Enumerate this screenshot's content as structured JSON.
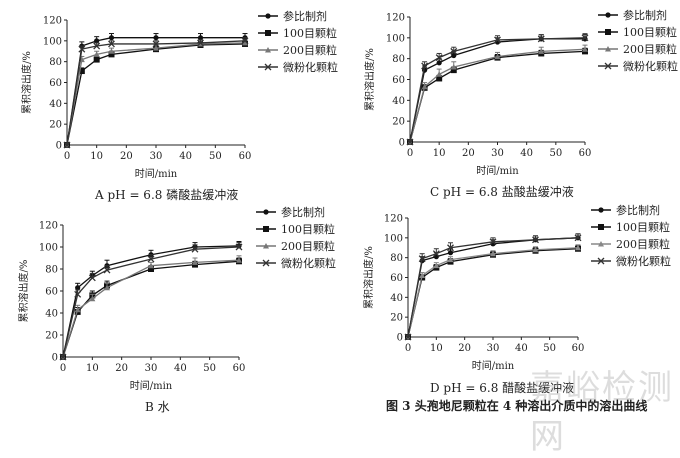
{
  "figure_caption": "图 3   头孢地尼颗粒在 4 种溶出介质中的溶出曲线",
  "watermark": "嘉峪检测网",
  "chart_data": [
    {
      "type": "line",
      "panel": "A",
      "caption": "A  pH = 6.8 磷酸盐缓冲液",
      "xlabel": "时间/min",
      "ylabel": "累积溶出度/%",
      "xlim": [
        0,
        60
      ],
      "ylim": [
        0,
        120
      ],
      "xticks": [
        0,
        10,
        20,
        30,
        40,
        50,
        60
      ],
      "yticks": [
        0,
        20,
        40,
        60,
        80,
        100,
        120
      ],
      "legend": "top-right",
      "grid": false,
      "x": [
        0,
        5,
        10,
        15,
        30,
        45,
        60
      ],
      "series": [
        {
          "name": "参比制剂",
          "marker": "diamond",
          "color": "#111111",
          "values": [
            0,
            95,
            100,
            103,
            103,
            103,
            103
          ],
          "error": [
            0,
            4,
            4,
            4,
            4,
            4,
            4
          ]
        },
        {
          "name": "100目颗粒",
          "marker": "square",
          "color": "#111111",
          "values": [
            0,
            71,
            82,
            87,
            92,
            96,
            97
          ],
          "error": [
            0,
            3,
            3,
            3,
            3,
            3,
            3
          ]
        },
        {
          "name": "200目颗粒",
          "marker": "triangle",
          "color": "#777777",
          "values": [
            0,
            82,
            87,
            90,
            93,
            97,
            98
          ],
          "error": [
            0,
            3,
            3,
            3,
            3,
            3,
            3
          ]
        },
        {
          "name": "微粉化颗粒",
          "marker": "cross",
          "color": "#333333",
          "values": [
            0,
            92,
            95,
            97,
            97,
            98,
            100
          ],
          "error": [
            0,
            3,
            3,
            3,
            3,
            3,
            3
          ]
        }
      ]
    },
    {
      "type": "line",
      "panel": "C",
      "caption": "C  pH = 6.8 盐酸盐缓冲液",
      "xlabel": "时间/min",
      "ylabel": "累积溶出度/%",
      "xlim": [
        0,
        60
      ],
      "ylim": [
        0,
        120
      ],
      "xticks": [
        0,
        10,
        20,
        30,
        40,
        50,
        60
      ],
      "yticks": [
        0,
        20,
        40,
        60,
        80,
        100,
        120
      ],
      "legend": "top-right",
      "grid": false,
      "x": [
        0,
        5,
        10,
        15,
        30,
        45,
        60
      ],
      "series": [
        {
          "name": "参比制剂",
          "marker": "diamond",
          "color": "#111111",
          "values": [
            0,
            69,
            76,
            83,
            96,
            99,
            99
          ],
          "error": [
            0,
            4,
            4,
            4,
            4,
            4,
            4
          ]
        },
        {
          "name": "100目颗粒",
          "marker": "square",
          "color": "#111111",
          "values": [
            0,
            52,
            61,
            69,
            81,
            85,
            87
          ],
          "error": [
            0,
            3,
            3,
            3,
            3,
            3,
            3
          ]
        },
        {
          "name": "200目颗粒",
          "marker": "triangle",
          "color": "#777777",
          "values": [
            0,
            53,
            65,
            72,
            82,
            87,
            89
          ],
          "error": [
            0,
            4,
            5,
            5,
            4,
            4,
            4
          ]
        },
        {
          "name": "微粉化颗粒",
          "marker": "cross",
          "color": "#333333",
          "values": [
            0,
            73,
            81,
            87,
            98,
            99,
            100
          ],
          "error": [
            0,
            4,
            4,
            4,
            4,
            4,
            4
          ]
        }
      ]
    },
    {
      "type": "line",
      "panel": "B",
      "caption": "B  水",
      "xlabel": "时间/min",
      "ylabel": "累积溶出度/%",
      "xlim": [
        0,
        60
      ],
      "ylim": [
        0,
        120
      ],
      "xticks": [
        0,
        10,
        20,
        30,
        40,
        50,
        60
      ],
      "yticks": [
        0,
        20,
        40,
        60,
        80,
        100,
        120
      ],
      "legend": "top-right",
      "grid": false,
      "x": [
        0,
        5,
        10,
        15,
        30,
        45,
        60
      ],
      "series": [
        {
          "name": "参比制剂",
          "marker": "diamond",
          "color": "#111111",
          "values": [
            0,
            63,
            74,
            83,
            93,
            100,
            101
          ],
          "error": [
            0,
            4,
            4,
            5,
            4,
            4,
            4
          ]
        },
        {
          "name": "100目颗粒",
          "marker": "square",
          "color": "#111111",
          "values": [
            0,
            41,
            56,
            65,
            80,
            84,
            87
          ],
          "error": [
            0,
            4,
            4,
            4,
            3,
            3,
            3
          ]
        },
        {
          "name": "200目颗粒",
          "marker": "triangle",
          "color": "#777777",
          "values": [
            0,
            43,
            53,
            63,
            83,
            86,
            88
          ],
          "error": [
            0,
            4,
            4,
            4,
            3,
            4,
            4
          ]
        },
        {
          "name": "微粉化颗粒",
          "marker": "cross",
          "color": "#333333",
          "values": [
            0,
            57,
            72,
            79,
            89,
            98,
            100
          ],
          "error": [
            0,
            4,
            4,
            4,
            4,
            4,
            4
          ]
        }
      ]
    },
    {
      "type": "line",
      "panel": "D",
      "caption": "D  pH = 6.8 醋酸盐缓冲液",
      "xlabel": "时间/min",
      "ylabel": "累积溶出度/%",
      "xlim": [
        0,
        60
      ],
      "ylim": [
        0,
        120
      ],
      "xticks": [
        0,
        10,
        20,
        30,
        40,
        50,
        60
      ],
      "yticks": [
        0,
        20,
        40,
        60,
        80,
        100,
        120
      ],
      "legend": "top-right",
      "grid": false,
      "x": [
        0,
        5,
        10,
        15,
        30,
        45,
        60
      ],
      "series": [
        {
          "name": "参比制剂",
          "marker": "diamond",
          "color": "#111111",
          "values": [
            0,
            77,
            81,
            85,
            94,
            98,
            100
          ],
          "error": [
            0,
            4,
            4,
            4,
            4,
            4,
            4
          ]
        },
        {
          "name": "100目颗粒",
          "marker": "square",
          "color": "#111111",
          "values": [
            0,
            60,
            70,
            76,
            83,
            87,
            89
          ],
          "error": [
            0,
            3,
            3,
            3,
            3,
            3,
            3
          ]
        },
        {
          "name": "200目颗粒",
          "marker": "triangle",
          "color": "#888888",
          "values": [
            0,
            62,
            72,
            78,
            84,
            88,
            90
          ],
          "error": [
            0,
            3,
            3,
            3,
            3,
            3,
            3
          ]
        },
        {
          "name": "微粉化颗粒",
          "marker": "cross",
          "color": "#333333",
          "values": [
            0,
            79,
            84,
            90,
            96,
            98,
            100
          ],
          "error": [
            0,
            5,
            5,
            5,
            4,
            4,
            4
          ]
        }
      ]
    }
  ]
}
